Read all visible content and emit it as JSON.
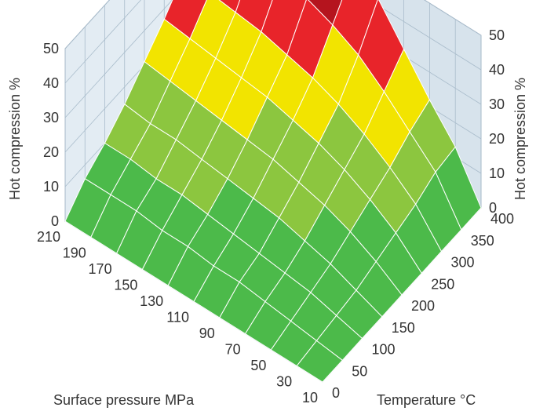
{
  "chart_data": {
    "type": "surface3d",
    "title": "",
    "zlabel": "Hot compression %",
    "xlabel": "Surface pressure MPa",
    "ylabel": "Temperature °C",
    "zlim": [
      0,
      50
    ],
    "z_ticks": [
      "0",
      "10",
      "20",
      "30",
      "40",
      "50"
    ],
    "x_ticks": [
      "10",
      "30",
      "50",
      "70",
      "90",
      "110",
      "130",
      "150",
      "170",
      "190",
      "210"
    ],
    "y_ticks": [
      "0",
      "50",
      "100",
      "150",
      "200",
      "250",
      "300",
      "350",
      "400"
    ],
    "grid": true,
    "color_bands": [
      {
        "from": 0,
        "to": 10,
        "color": "#4cba4a"
      },
      {
        "from": 10,
        "to": 20,
        "color": "#8cc63f"
      },
      {
        "from": 20,
        "to": 30,
        "color": "#f2e400"
      },
      {
        "from": 30,
        "to": 40,
        "color": "#e8242a"
      },
      {
        "from": 40,
        "to": 50,
        "color": "#b5141e"
      }
    ],
    "pressure_MPa": [
      10,
      30,
      50,
      70,
      90,
      110,
      130,
      150,
      170,
      190,
      210
    ],
    "temperature_C": [
      0,
      50,
      100,
      150,
      200,
      250,
      300,
      350,
      400
    ],
    "z_values": [
      [
        0,
        0,
        0,
        0,
        0,
        0,
        0,
        0,
        0
      ],
      [
        0,
        1,
        2,
        3,
        5,
        7,
        9,
        12,
        13
      ],
      [
        0,
        2,
        4,
        6,
        9,
        12,
        15,
        19,
        22
      ],
      [
        0,
        3,
        5,
        8,
        12,
        16,
        20,
        26,
        32
      ],
      [
        0,
        4,
        6,
        10,
        14,
        19,
        24,
        32,
        42
      ],
      [
        0,
        4,
        7,
        11,
        16,
        21,
        27,
        36,
        45
      ],
      [
        0,
        5,
        8,
        12,
        17,
        23,
        29,
        39,
        45
      ],
      [
        0,
        5,
        9,
        13,
        18,
        24,
        31,
        41,
        45
      ],
      [
        0,
        6,
        9,
        14,
        19,
        25,
        32,
        42,
        45
      ],
      [
        0,
        6,
        10,
        14,
        20,
        26,
        33,
        43,
        45
      ],
      [
        0,
        6,
        10,
        15,
        21,
        27,
        34,
        44,
        45
      ]
    ]
  }
}
